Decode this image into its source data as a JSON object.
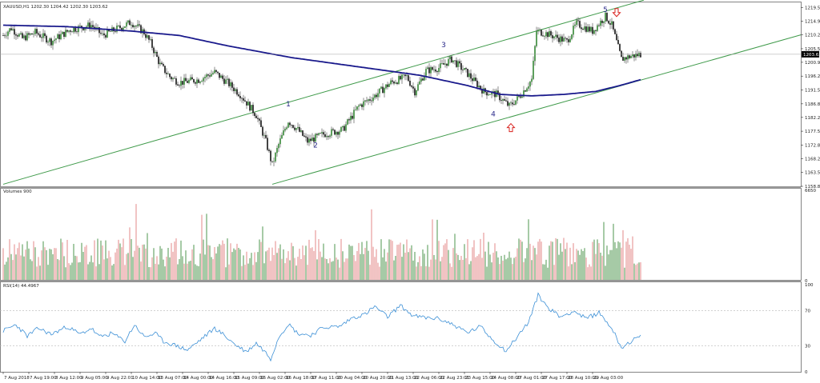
{
  "window": {
    "title": "XAUUSD,H1  1202.30 1204.42 1202.30 1203.62",
    "current_price": "1203.62"
  },
  "colors": {
    "bull": "#3a8a3a",
    "bear": "#e07b7b",
    "ma": "#1a1a8c",
    "channel": "#3f9a4a",
    "rsi": "#3b8fd6",
    "arrow": "#d9231f",
    "wave": "#2b2b8a"
  },
  "chart_data": [
    {
      "type": "line",
      "pane": "price",
      "title": "XAUUSD,H1  1202.30 1204.42 1202.30 1203.62",
      "ylim": [
        1158.8,
        1221.5
      ],
      "price_ticks": [
        "1219.50",
        "1214.90",
        "1210.20",
        "1205.50",
        "1200.90",
        "1196.20",
        "1191.50",
        "1186.80",
        "1182.20",
        "1177.50",
        "1172.80",
        "1168.20",
        "1163.50",
        "1158.80"
      ],
      "current_price": 1203.62,
      "waves": [
        {
          "label": "1",
          "bar": 178,
          "price": 1186.0
        },
        {
          "label": "2",
          "bar": 195,
          "price": 1172.0
        },
        {
          "label": "3",
          "bar": 275,
          "price": 1206.0
        },
        {
          "label": "4",
          "bar": 306,
          "price": 1182.5
        },
        {
          "label": "5",
          "bar": 376,
          "price": 1218.0
        }
      ],
      "arrows": [
        {
          "direction": "down",
          "bar": 383,
          "price": 1217.5
        },
        {
          "direction": "up",
          "bar": 317,
          "price": 1179.0
        }
      ],
      "channel_lines": [
        {
          "from": {
            "bar": 0,
            "price": 1159.5
          },
          "to": {
            "bar": 400,
            "price": 1222.0
          }
        },
        {
          "from": {
            "bar": 168,
            "price": 1159.5
          },
          "to": {
            "bar": 500,
            "price": 1210.5
          }
        }
      ],
      "series": [
        {
          "kind": "moving-average",
          "anchors": [
            [
              0,
              1213.5
            ],
            [
              40,
              1213.0
            ],
            [
              80,
              1211.5
            ],
            [
              110,
              1210.0
            ],
            [
              140,
              1206.5
            ],
            [
              180,
              1202.5
            ],
            [
              220,
              1199.5
            ],
            [
              260,
              1196.5
            ],
            [
              290,
              1193.0
            ],
            [
              310,
              1190.0
            ],
            [
              330,
              1189.5
            ],
            [
              350,
              1190.0
            ],
            [
              370,
              1191.0
            ],
            [
              385,
              1193.0
            ],
            [
              398,
              1195.0
            ]
          ]
        }
      ],
      "price_anchors": [
        [
          0,
          1210
        ],
        [
          5,
          1212.5
        ],
        [
          12,
          1209
        ],
        [
          20,
          1211
        ],
        [
          30,
          1208
        ],
        [
          42,
          1212
        ],
        [
          55,
          1213.5
        ],
        [
          62,
          1210
        ],
        [
          72,
          1212.5
        ],
        [
          80,
          1214.5
        ],
        [
          88,
          1211
        ],
        [
          92,
          1207.5
        ],
        [
          98,
          1200
        ],
        [
          104,
          1196
        ],
        [
          110,
          1194
        ],
        [
          122,
          1195
        ],
        [
          132,
          1197.5
        ],
        [
          140,
          1194
        ],
        [
          148,
          1190
        ],
        [
          158,
          1183
        ],
        [
          164,
          1174
        ],
        [
          168,
          1166
        ],
        [
          172,
          1173
        ],
        [
          178,
          1181
        ],
        [
          184,
          1178
        ],
        [
          190,
          1174
        ],
        [
          200,
          1176.5
        ],
        [
          212,
          1178
        ],
        [
          222,
          1186
        ],
        [
          232,
          1189.5
        ],
        [
          242,
          1194
        ],
        [
          252,
          1196
        ],
        [
          257,
          1191
        ],
        [
          264,
          1198
        ],
        [
          272,
          1199
        ],
        [
          280,
          1202
        ],
        [
          290,
          1197
        ],
        [
          300,
          1191
        ],
        [
          308,
          1190
        ],
        [
          316,
          1186
        ],
        [
          322,
          1189
        ],
        [
          330,
          1195
        ],
        [
          333,
          1211.5
        ],
        [
          340,
          1210.5
        ],
        [
          352,
          1208
        ],
        [
          358,
          1214
        ],
        [
          368,
          1211.5
        ],
        [
          376,
          1216.5
        ],
        [
          380,
          1213.5
        ],
        [
          386,
          1202
        ],
        [
          392,
          1203
        ],
        [
          398,
          1203.62
        ]
      ]
    },
    {
      "type": "bar",
      "pane": "volume",
      "title": "Volumes 900",
      "ylim": [
        0,
        6650
      ],
      "ticks": [
        "6650",
        "0"
      ],
      "shown_value": 900
    },
    {
      "type": "line",
      "pane": "rsi",
      "title": "RSI(14) 44.4967",
      "ylim": [
        0,
        100
      ],
      "ticks": [
        "100",
        "70",
        "30",
        "0"
      ],
      "levels": [
        70,
        30
      ],
      "current_value": 44.4967,
      "anchors": [
        [
          0,
          47
        ],
        [
          8,
          54
        ],
        [
          15,
          41
        ],
        [
          22,
          50
        ],
        [
          30,
          43
        ],
        [
          40,
          52
        ],
        [
          48,
          43
        ],
        [
          55,
          50
        ],
        [
          60,
          40
        ],
        [
          68,
          44
        ],
        [
          76,
          35
        ],
        [
          82,
          54
        ],
        [
          88,
          40
        ],
        [
          95,
          44
        ],
        [
          100,
          35
        ],
        [
          108,
          30
        ],
        [
          115,
          25
        ],
        [
          122,
          35
        ],
        [
          132,
          50
        ],
        [
          138,
          42
        ],
        [
          145,
          31
        ],
        [
          152,
          23
        ],
        [
          158,
          33
        ],
        [
          164,
          22
        ],
        [
          167,
          15
        ],
        [
          172,
          40
        ],
        [
          178,
          55
        ],
        [
          184,
          44
        ],
        [
          192,
          42
        ],
        [
          200,
          51
        ],
        [
          210,
          52
        ],
        [
          218,
          62
        ],
        [
          226,
          66
        ],
        [
          232,
          75
        ],
        [
          240,
          63
        ],
        [
          248,
          76
        ],
        [
          256,
          64
        ],
        [
          264,
          62
        ],
        [
          272,
          61
        ],
        [
          280,
          55
        ],
        [
          290,
          45
        ],
        [
          298,
          52
        ],
        [
          306,
          36
        ],
        [
          314,
          24
        ],
        [
          320,
          38
        ],
        [
          328,
          57
        ],
        [
          334,
          88
        ],
        [
          340,
          74
        ],
        [
          348,
          63
        ],
        [
          356,
          70
        ],
        [
          364,
          61
        ],
        [
          372,
          68
        ],
        [
          380,
          50
        ],
        [
          386,
          28
        ],
        [
          392,
          35
        ],
        [
          398,
          41
        ]
      ]
    }
  ],
  "time_axis": {
    "labels": [
      {
        "bar": 0,
        "text": "7 Aug 2018"
      },
      {
        "bar": 16,
        "text": "7 Aug 19:00"
      },
      {
        "bar": 32,
        "text": "8 Aug 12:00"
      },
      {
        "bar": 48,
        "text": "9 Aug 05:00"
      },
      {
        "bar": 64,
        "text": "9 Aug 22:01"
      },
      {
        "bar": 80,
        "text": "10 Aug 14:00"
      },
      {
        "bar": 96,
        "text": "13 Aug 07:00"
      },
      {
        "bar": 112,
        "text": "14 Aug 00:00"
      },
      {
        "bar": 128,
        "text": "14 Aug 16:00"
      },
      {
        "bar": 144,
        "text": "15 Aug 09:00"
      },
      {
        "bar": 160,
        "text": "16 Aug 02:00"
      },
      {
        "bar": 176,
        "text": "16 Aug 18:00"
      },
      {
        "bar": 192,
        "text": "17 Aug 11:00"
      },
      {
        "bar": 208,
        "text": "20 Aug 04:00"
      },
      {
        "bar": 224,
        "text": "20 Aug 20:00"
      },
      {
        "bar": 240,
        "text": "21 Aug 13:00"
      },
      {
        "bar": 256,
        "text": "22 Aug 06:00"
      },
      {
        "bar": 272,
        "text": "22 Aug 23:01"
      },
      {
        "bar": 288,
        "text": "23 Aug 15:00"
      },
      {
        "bar": 304,
        "text": "24 Aug 08:00"
      },
      {
        "bar": 320,
        "text": "27 Aug 01:00"
      },
      {
        "bar": 336,
        "text": "27 Aug 17:00"
      },
      {
        "bar": 352,
        "text": "28 Aug 10:00"
      },
      {
        "bar": 368,
        "text": "29 Aug 03:00"
      }
    ]
  }
}
